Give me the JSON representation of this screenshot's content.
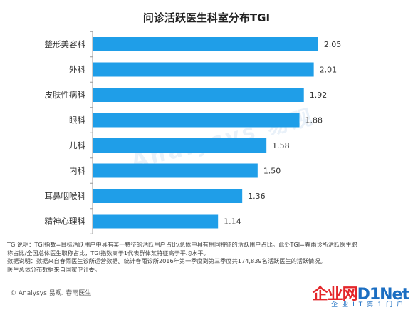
{
  "chart_data": {
    "type": "bar",
    "orientation": "horizontal",
    "title": "问诊活跃医生科室分布TGI",
    "categories": [
      "整形美容科",
      "外科",
      "皮肤性病科",
      "眼科",
      "儿科",
      "内科",
      "耳鼻咽喉科",
      "精神心理科"
    ],
    "values": [
      2.05,
      2.01,
      1.92,
      1.88,
      1.58,
      1.5,
      1.36,
      1.14
    ],
    "value_labels": [
      "2.05",
      "2.01",
      "1.92",
      "1.88",
      "1.58",
      "1.50",
      "1.36",
      "1.14"
    ],
    "xlim": [
      0,
      2.2
    ],
    "bar_color": "#1f9ee8",
    "axis_color": "#999999",
    "grid": false
  },
  "notes": {
    "line1": "TGI说明：TGI指数=目标活跃用户中具有某一特征的活跃用户占比/总体中具有相同特征的活跃用户占比。此处TGI=春雨诊所活跃医生职",
    "line2": "称占比/全国总体医生职称占比，TGI指数高于1代表群体某特征高于平均水平。",
    "line3": "数据说明：数据来自春雨医生诊所运营数据。统计春雨诊所2016年第一季度到第三季度共174,839名活跃医生的活跃情况。",
    "line4": "医生总体分布数据来自国家卫计委。"
  },
  "footer": {
    "source": "© Analysys 易观. 春雨医生"
  },
  "watermark": {
    "text": "Analysys 易观"
  },
  "logo": {
    "part1": "企业网",
    "part2": "D1Net",
    "tagline": "企业IT第1门户"
  }
}
